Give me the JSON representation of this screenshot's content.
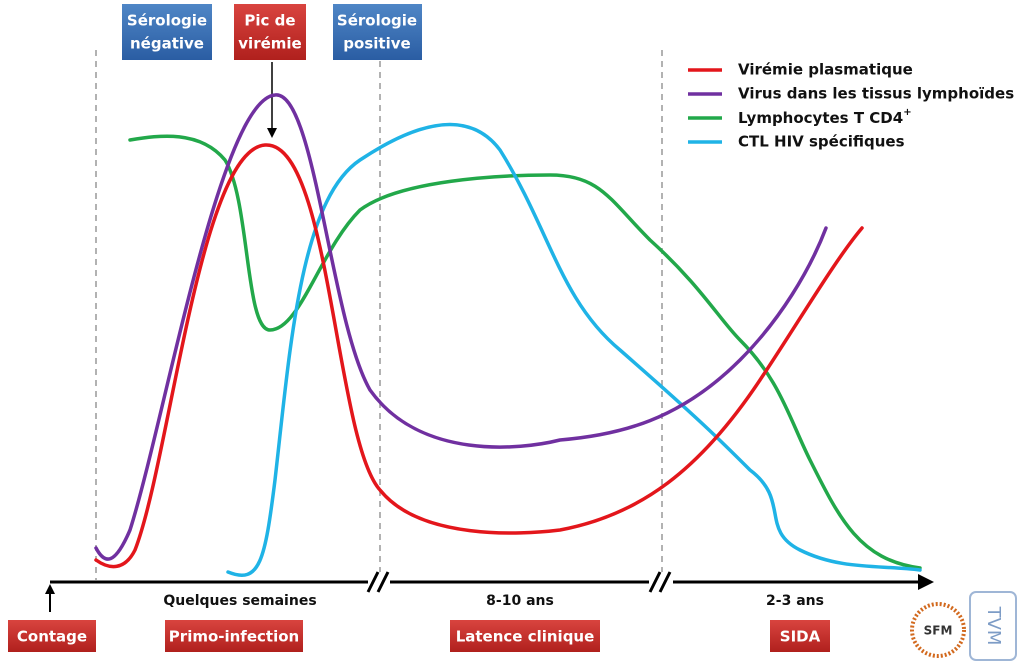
{
  "top_labels": [
    {
      "lines": [
        "Sérologie",
        "négative"
      ]
    },
    {
      "lines": [
        "Pic de",
        "virémie"
      ]
    },
    {
      "lines": [
        "Sérologie",
        "positive"
      ]
    }
  ],
  "legend": [
    "Virémie plasmatique",
    "Virus dans les tissus lymphoïdes",
    "Lymphocytes T CD4",
    "CTL HIV spécifiques"
  ],
  "legend_superscript": "+",
  "phases": [
    "Quelques semaines",
    "8-10 ans",
    "2-3 ans"
  ],
  "bottom_labels": [
    "Contage",
    "Primo-infection",
    "Latence clinique",
    "SIDA"
  ],
  "logos": [
    "SFM",
    "TVM"
  ]
}
